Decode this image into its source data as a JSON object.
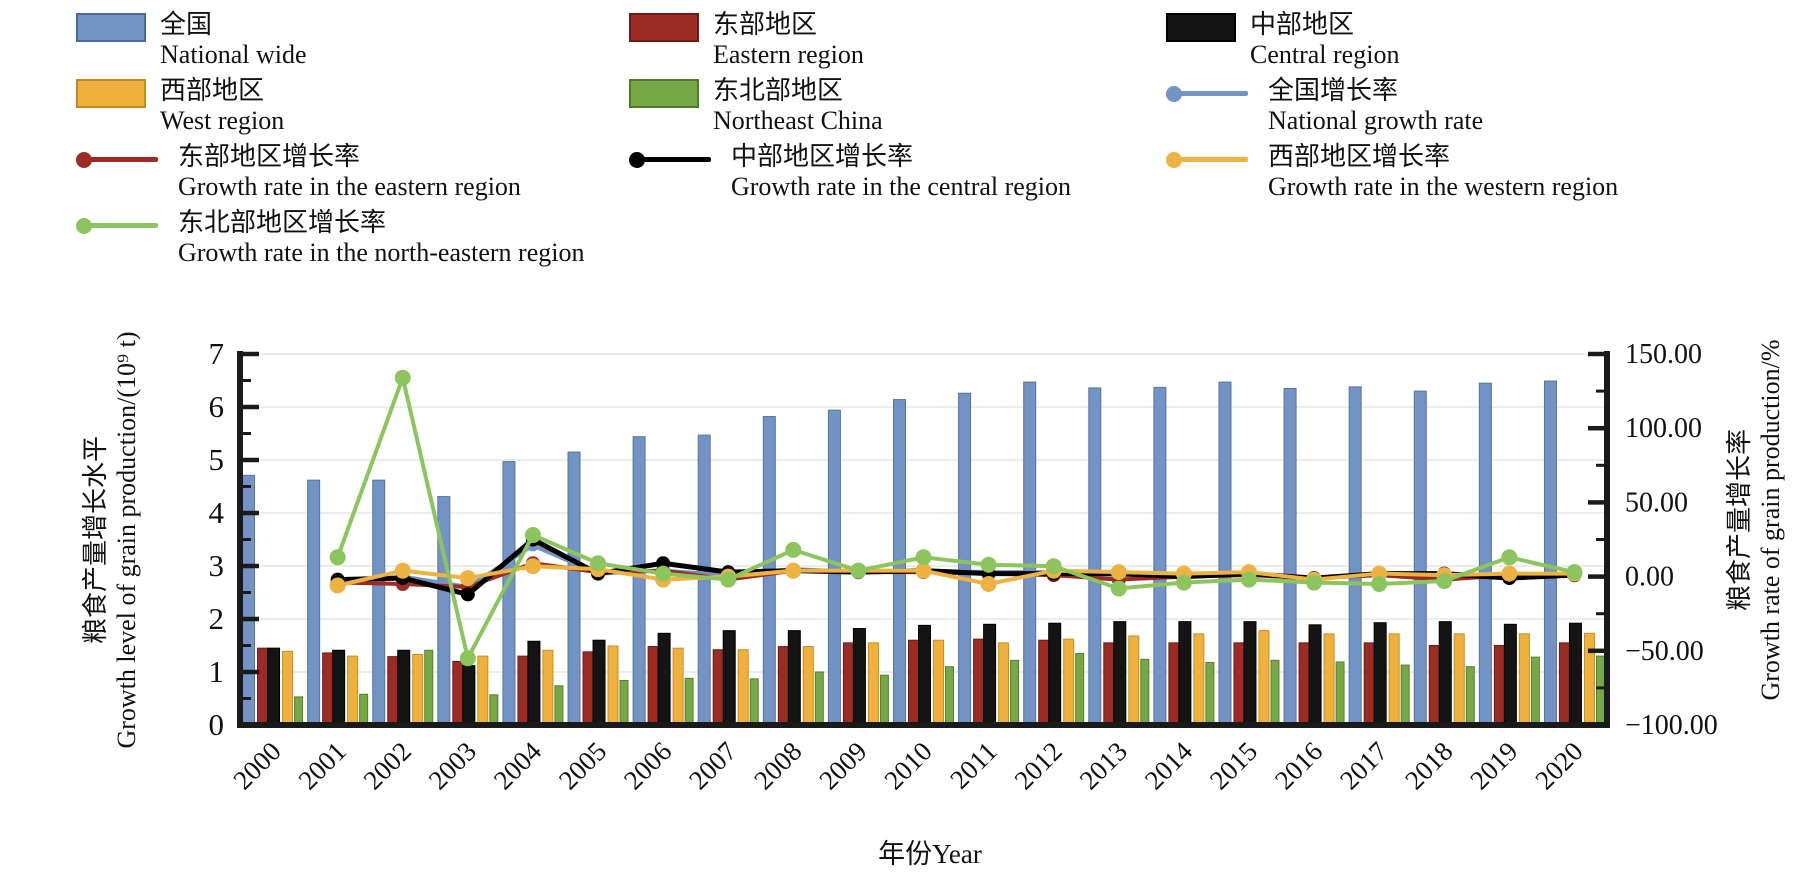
{
  "legend": {
    "items": [
      {
        "key": "national",
        "type": "bar",
        "color": "#7293c4",
        "border": "#4a6a9c",
        "zh": "全国",
        "en": "National wide"
      },
      {
        "key": "eastern",
        "type": "bar",
        "color": "#9c2b23",
        "border": "#6e1b16",
        "zh": "东部地区",
        "en": "Eastern region"
      },
      {
        "key": "central",
        "type": "bar",
        "color": "#141414",
        "border": "#000000",
        "zh": "中部地区",
        "en": "Central region"
      },
      {
        "key": "western",
        "type": "bar",
        "color": "#efb13c",
        "border": "#c08a1e",
        "zh": "西部地区",
        "en": "West region"
      },
      {
        "key": "northeast",
        "type": "bar",
        "color": "#76a846",
        "border": "#4f7a2a",
        "zh": "东北部地区",
        "en": "Northeast China"
      },
      {
        "key": "national-rate",
        "type": "line",
        "color": "#7293c4",
        "zh": "全国增长率",
        "en": "National growth rate"
      },
      {
        "key": "eastern-rate",
        "type": "line",
        "color": "#9c2b23",
        "zh": "东部地区增长率",
        "en": "Growth rate in the eastern region"
      },
      {
        "key": "central-rate",
        "type": "line",
        "color": "#000000",
        "zh": "中部地区增长率",
        "en": "Growth rate in the central region"
      },
      {
        "key": "western-rate",
        "type": "line",
        "color": "#eeb243",
        "zh": "西部地区增长率",
        "en": "Growth rate in the western region"
      },
      {
        "key": "northeast-rate",
        "type": "line",
        "color": "#8cc45e",
        "zh": "东北部地区增长率",
        "en": "Growth rate in the north-eastern region"
      }
    ],
    "positions": [
      [
        76,
        10
      ],
      [
        629,
        10
      ],
      [
        1166,
        10
      ],
      [
        76,
        76
      ],
      [
        629,
        76
      ],
      [
        1166,
        76
      ],
      [
        76,
        142
      ],
      [
        629,
        142
      ],
      [
        1166,
        142
      ],
      [
        76,
        208
      ]
    ]
  },
  "axes": {
    "left_title_zh": "粮食产量增长水平",
    "left_title_en": "Growth level of grain production/(10⁹ t)",
    "right_title_zh": "粮食产量增长率",
    "right_title_en": "Growth rate of grain production/%",
    "x_title": "年份Year"
  },
  "chart_data": {
    "type": "bar+line combo",
    "x": [
      "2000",
      "2001",
      "2002",
      "2003",
      "2004",
      "2005",
      "2006",
      "2007",
      "2008",
      "2009",
      "2010",
      "2011",
      "2012",
      "2013",
      "2014",
      "2015",
      "2016",
      "2017",
      "2018",
      "2019",
      "2020"
    ],
    "left_axis": {
      "label": "粮食产量增长水平 Growth level of grain production/(10⁹ t)",
      "range": [
        0,
        7
      ],
      "major_tick": 1,
      "minor_tick": 0.5,
      "tick_labels": [
        "0",
        "1",
        "2",
        "3",
        "4",
        "5",
        "6",
        "7"
      ]
    },
    "right_axis": {
      "label": "粮食产量增长率 Growth rate of grain production/%",
      "range": [
        -100,
        150
      ],
      "major_tick": 50,
      "minor_tick": 25,
      "tick_labels": [
        "150.00",
        "100.00",
        "50.00",
        "0.00",
        "−50.00",
        "−100.00"
      ]
    },
    "grid": "light horizontal gridlines at each left-axis unit",
    "legend_position": "top",
    "bar_series": [
      {
        "key": "national",
        "name_zh": "全国",
        "name_en": "National wide",
        "color": "#7293c4",
        "border": "#55749f",
        "values": [
          4.71,
          4.62,
          4.62,
          4.31,
          4.97,
          5.15,
          5.44,
          5.47,
          5.82,
          5.94,
          6.14,
          6.26,
          6.47,
          6.36,
          6.37,
          6.47,
          6.35,
          6.38,
          6.3,
          6.45,
          6.49
        ]
      },
      {
        "key": "eastern",
        "name_zh": "东部地区",
        "name_en": "Eastern region",
        "color": "#9c2b23",
        "border": "#6e1b16",
        "values": [
          1.45,
          1.36,
          1.29,
          1.2,
          1.3,
          1.38,
          1.48,
          1.42,
          1.48,
          1.55,
          1.6,
          1.62,
          1.6,
          1.55,
          1.55,
          1.55,
          1.55,
          1.55,
          1.5,
          1.5,
          1.55
        ]
      },
      {
        "key": "central",
        "name_zh": "中部地区",
        "name_en": "Central region",
        "color": "#141414",
        "border": "#000000",
        "values": [
          1.45,
          1.41,
          1.41,
          1.12,
          1.58,
          1.6,
          1.73,
          1.78,
          1.78,
          1.82,
          1.88,
          1.9,
          1.92,
          1.95,
          1.95,
          1.95,
          1.89,
          1.93,
          1.95,
          1.9,
          1.92
        ]
      },
      {
        "key": "western",
        "name_zh": "西部地区",
        "name_en": "West region",
        "color": "#efb13c",
        "border": "#c78f22",
        "values": [
          1.39,
          1.3,
          1.33,
          1.3,
          1.41,
          1.49,
          1.45,
          1.42,
          1.48,
          1.55,
          1.6,
          1.55,
          1.62,
          1.68,
          1.72,
          1.78,
          1.72,
          1.72,
          1.72,
          1.72,
          1.73
        ]
      },
      {
        "key": "northeast",
        "name_zh": "东北部地区",
        "name_en": "Northeast China",
        "color": "#76a846",
        "border": "#55802f",
        "values": [
          0.53,
          0.58,
          1.41,
          0.57,
          0.74,
          0.84,
          0.88,
          0.87,
          1.0,
          0.94,
          1.1,
          1.22,
          1.35,
          1.24,
          1.18,
          1.22,
          1.19,
          1.13,
          1.1,
          1.28,
          1.3
        ]
      }
    ],
    "line_series": [
      {
        "key": "national-rate",
        "name_zh": "全国增长率",
        "name_en": "National growth rate",
        "color": "#7293c4",
        "marker_r": 6,
        "width": 4,
        "values": [
          null,
          -4,
          0,
          -7,
          21,
          2,
          4,
          1,
          5,
          3,
          4,
          3,
          3,
          1,
          1,
          2,
          -1,
          1,
          -1,
          2,
          1
        ]
      },
      {
        "key": "eastern-rate",
        "name_zh": "东部地区增长率",
        "name_en": "Growth rate in the eastern region",
        "color": "#9c2b23",
        "marker_r": 7,
        "width": 4,
        "values": [
          null,
          -4,
          -5,
          -7,
          9,
          3,
          4,
          -2,
          4,
          3,
          3,
          2,
          1,
          -2,
          0,
          1,
          -1,
          1,
          -2,
          1,
          1
        ]
      },
      {
        "key": "central-rate",
        "name_zh": "中部地区增长率",
        "name_en": "Growth rate in the central region",
        "color": "#000000",
        "marker_r": 7,
        "width": 5,
        "values": [
          null,
          -2,
          -1,
          -12,
          25,
          2,
          9,
          3,
          4,
          3,
          4,
          2,
          2,
          2,
          0,
          2,
          -1,
          2,
          2,
          -1,
          1
        ]
      },
      {
        "key": "western-rate",
        "name_zh": "西部地区增长率",
        "name_en": "Growth rate in the western region",
        "color": "#eeb243",
        "marker_r": 8,
        "width": 4,
        "values": [
          null,
          -6,
          4,
          -1,
          7,
          5,
          -2,
          0,
          4,
          4,
          4,
          -5,
          4,
          3,
          2,
          3,
          -2,
          2,
          1,
          2,
          2
        ]
      },
      {
        "key": "northeast-rate",
        "name_zh": "东北部地区增长率",
        "name_en": "Growth rate in the north-eastern region",
        "color": "#8cc45e",
        "marker_r": 8,
        "width": 4,
        "values": [
          null,
          13,
          134,
          -55,
          28,
          9,
          2,
          -2,
          18,
          4,
          13,
          8,
          7,
          -8,
          -4,
          -2,
          -4,
          -5,
          -3,
          13,
          3
        ]
      }
    ]
  }
}
